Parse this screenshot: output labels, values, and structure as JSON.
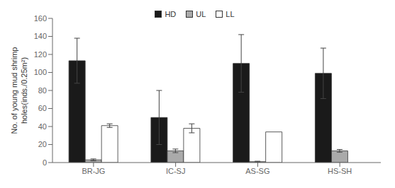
{
  "chart_data": {
    "type": "bar",
    "categories": [
      "BR-JG",
      "IC-SJ",
      "AS-SG",
      "HS-SH"
    ],
    "series": [
      {
        "name": "HD",
        "color": "#1a1a1a",
        "values": [
          113,
          50,
          110,
          99
        ],
        "errors": [
          25,
          30,
          32,
          28
        ]
      },
      {
        "name": "UL",
        "color": "#aaaaaa",
        "values": [
          3,
          13,
          1,
          13
        ],
        "errors": [
          1,
          2,
          0.5,
          1.5
        ]
      },
      {
        "name": "LL",
        "color": "#ffffff",
        "values": [
          41,
          38,
          34,
          0
        ],
        "errors": [
          2,
          5,
          0,
          0
        ]
      }
    ],
    "ylabel": "No. of young mud shrimp\nholes(inds./0.25m²)",
    "ylim": [
      0,
      160
    ],
    "yticks": [
      0,
      20,
      40,
      60,
      80,
      100,
      120,
      140,
      160
    ],
    "grid": false,
    "legend": "top"
  }
}
